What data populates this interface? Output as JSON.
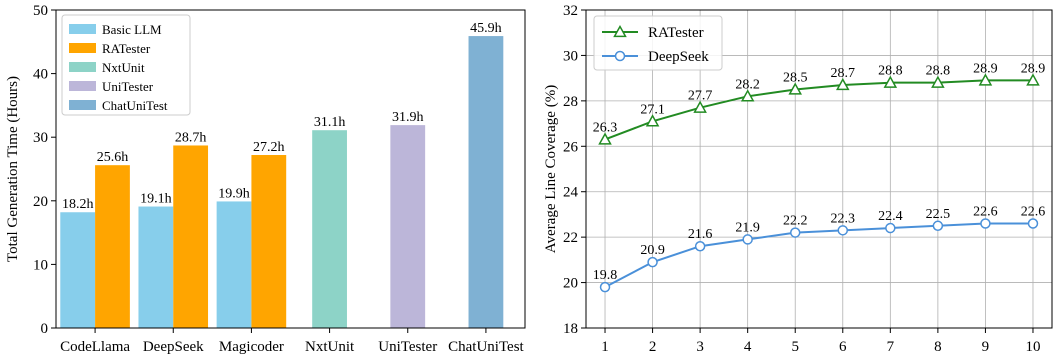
{
  "chart_data": [
    {
      "type": "bar",
      "ylabel": "Total Generation Time (Hours)",
      "ylim": [
        0,
        50
      ],
      "yticks": [
        0,
        10,
        20,
        30,
        40,
        50
      ],
      "categories": [
        "CodeLlama",
        "DeepSeek",
        "Magicoder",
        "NxtUnit",
        "UniTester",
        "ChatUniTest"
      ],
      "legend_position": "top-left",
      "grid": false,
      "series": [
        {
          "name": "Basic LLM",
          "color": "#87ceeb",
          "values": [
            18.2,
            19.1,
            19.9,
            null,
            null,
            null
          ],
          "labels": [
            "18.2h",
            "19.1h",
            "19.9h",
            null,
            null,
            null
          ]
        },
        {
          "name": "RATester",
          "color": "#ffa500",
          "values": [
            25.6,
            28.7,
            27.2,
            null,
            null,
            null
          ],
          "labels": [
            "25.6h",
            "28.7h",
            "27.2h",
            null,
            null,
            null
          ]
        },
        {
          "name": "NxtUnit",
          "color": "#8dd3c7",
          "values": [
            null,
            null,
            null,
            31.1,
            null,
            null
          ],
          "labels": [
            null,
            null,
            null,
            "31.1h",
            null,
            null
          ]
        },
        {
          "name": "UniTester",
          "color": "#bcb6d9",
          "values": [
            null,
            null,
            null,
            null,
            31.9,
            null
          ],
          "labels": [
            null,
            null,
            null,
            null,
            "31.9h",
            null
          ]
        },
        {
          "name": "ChatUniTest",
          "color": "#7fb1d3",
          "values": [
            null,
            null,
            null,
            null,
            null,
            45.9
          ],
          "labels": [
            null,
            null,
            null,
            null,
            null,
            "45.9h"
          ]
        }
      ]
    },
    {
      "type": "line",
      "ylabel": "Average Line Coverage (%)",
      "ylim": [
        18,
        32
      ],
      "yticks": [
        18,
        20,
        22,
        24,
        26,
        28,
        30,
        32
      ],
      "x": [
        1,
        2,
        3,
        4,
        5,
        6,
        7,
        8,
        9,
        10
      ],
      "xlim": [
        0.6,
        10.4
      ],
      "legend_position": "top-left",
      "grid": true,
      "series": [
        {
          "name": "RATester",
          "color": "#228b22",
          "marker": "triangle",
          "values": [
            26.3,
            27.1,
            27.7,
            28.2,
            28.5,
            28.7,
            28.8,
            28.8,
            28.9,
            28.9
          ]
        },
        {
          "name": "DeepSeek",
          "color": "#4a90d9",
          "marker": "circle",
          "values": [
            19.8,
            20.9,
            21.6,
            21.9,
            22.2,
            22.3,
            22.4,
            22.5,
            22.6,
            22.6
          ]
        }
      ]
    }
  ]
}
